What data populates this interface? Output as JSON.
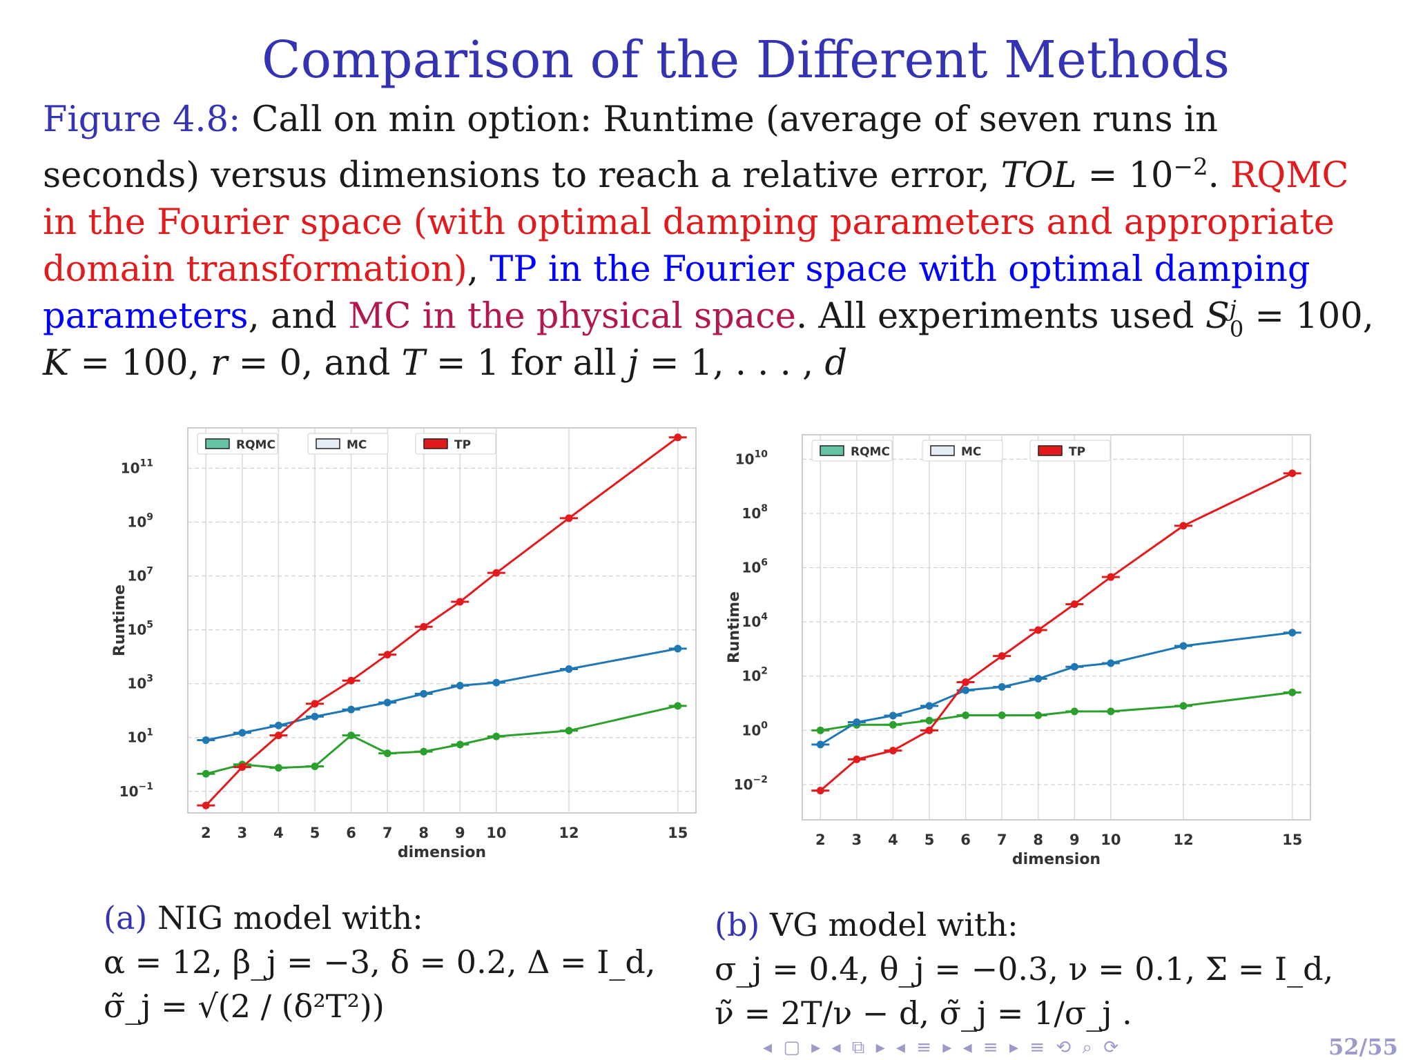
{
  "slide": {
    "title": "Comparison of the Different Methods",
    "page": "52/55",
    "nav_glyphs": "◂ ▢ ▸  ◂ ⧉ ▸  ◂ ≡ ▸  ◂ ≡ ▸   ≡   ⟲ ⌕ ⟳"
  },
  "caption": {
    "fig_label": "Figure 4.8:",
    "t1": "Call on min option: Runtime (average of seven runs in seconds) versus dimensions to reach a relative error,",
    "tol": "TOL",
    "t2": "= 10",
    "t2_exp": "−2",
    "t3": ".",
    "rqmc_text": "RQMC in the Fourier space (with optimal damping parameters and appropriate domain transformation)",
    "t4": ",",
    "tp_text": "TP in the Fourier space with optimal damping parameters",
    "t5": ", and",
    "mc_text": "MC in the physical space",
    "t6": ". All experiments used",
    "s0": "S",
    "s0_sub": "0",
    "s0_sup": "j",
    "t7": "= 100,",
    "k": "K",
    "t8": "= 100,",
    "r": "r",
    "t9": "= 0, and",
    "T": "T",
    "t10": "= 1 for all",
    "j": "j",
    "t11": "= 1, . . . ,",
    "d": "d"
  },
  "subcaptions": {
    "a_label": "(a)",
    "a_text": "NIG model with:",
    "a_line2": "α = 12, β_j = −3, δ = 0.2, Δ = I_d,",
    "a_line3": "σ̃_j = √(2 / (δ²T²))",
    "b_label": "(b)",
    "b_text": "VG model with:",
    "b_line2": "σ_j = 0.4, θ_j = −0.3, ν = 0.1, Σ = I_d,",
    "b_line3": "ν̃ = 2T/ν − d, σ̃_j = 1/σ_j ."
  },
  "colors": {
    "rqmc": "#2ca02c",
    "mc": "#1f77b4",
    "tp": "#e31a1c",
    "rqmc_legend": "#66c2a5",
    "mc_legend": "#e6ecf5",
    "tp_legend": "#e31a1c"
  },
  "chart_data": [
    {
      "type": "line",
      "yscale": "log",
      "xlabel": "dimension",
      "ylabel": "Runtime",
      "x": [
        2,
        3,
        4,
        5,
        6,
        7,
        8,
        9,
        10,
        12,
        15
      ],
      "xticks": [
        "2",
        "3",
        "4",
        "5",
        "6",
        "7",
        "8",
        "9",
        "10",
        "12",
        "15"
      ],
      "yticks": [
        {
          "base": "10",
          "exp": "−1",
          "v": -1
        },
        {
          "base": "10",
          "exp": "1",
          "v": 1
        },
        {
          "base": "10",
          "exp": "3",
          "v": 3
        },
        {
          "base": "10",
          "exp": "5",
          "v": 5
        },
        {
          "base": "10",
          "exp": "7",
          "v": 7
        },
        {
          "base": "10",
          "exp": "9",
          "v": 9
        },
        {
          "base": "10",
          "exp": "11",
          "v": 11
        }
      ],
      "ylim_log10": [
        -1.8,
        12.5
      ],
      "legend": [
        "RQMC",
        "MC",
        "TP"
      ],
      "series": [
        {
          "name": "RQMC",
          "values": [
            0.45,
            1.0,
            0.75,
            0.85,
            12,
            2.6,
            3.0,
            5.5,
            11,
            18,
            150
          ]
        },
        {
          "name": "MC",
          "values": [
            8,
            15,
            28,
            60,
            110,
            200,
            420,
            850,
            1100,
            3500,
            20000
          ]
        },
        {
          "name": "TP",
          "values": [
            0.03,
            0.8,
            12,
            180,
            1300,
            12000,
            130000,
            1100000,
            13000000,
            1400000000,
            1400000000000
          ]
        }
      ]
    },
    {
      "type": "line",
      "yscale": "log",
      "xlabel": "dimension",
      "ylabel": "Runtime",
      "x": [
        2,
        3,
        4,
        5,
        6,
        7,
        8,
        9,
        10,
        12,
        15
      ],
      "xticks": [
        "2",
        "3",
        "4",
        "5",
        "6",
        "7",
        "8",
        "9",
        "10",
        "12",
        "15"
      ],
      "yticks": [
        {
          "base": "10",
          "exp": "−2",
          "v": -2
        },
        {
          "base": "10",
          "exp": "0",
          "v": 0
        },
        {
          "base": "10",
          "exp": "2",
          "v": 2
        },
        {
          "base": "10",
          "exp": "4",
          "v": 4
        },
        {
          "base": "10",
          "exp": "6",
          "v": 6
        },
        {
          "base": "10",
          "exp": "8",
          "v": 8
        },
        {
          "base": "10",
          "exp": "10",
          "v": 10
        }
      ],
      "ylim_log10": [
        -3.3,
        10.9
      ],
      "legend": [
        "RQMC",
        "MC",
        "TP"
      ],
      "series": [
        {
          "name": "RQMC",
          "values": [
            1.0,
            1.6,
            1.6,
            2.3,
            3.6,
            3.6,
            3.6,
            5,
            5,
            8,
            25
          ]
        },
        {
          "name": "MC",
          "values": [
            0.3,
            2.0,
            3.5,
            8,
            30,
            40,
            80,
            220,
            300,
            1300,
            4000
          ]
        },
        {
          "name": "TP",
          "values": [
            0.006,
            0.085,
            0.18,
            1.0,
            60,
            550,
            5000,
            45000,
            450000,
            35000000,
            3000000000
          ]
        }
      ]
    }
  ]
}
